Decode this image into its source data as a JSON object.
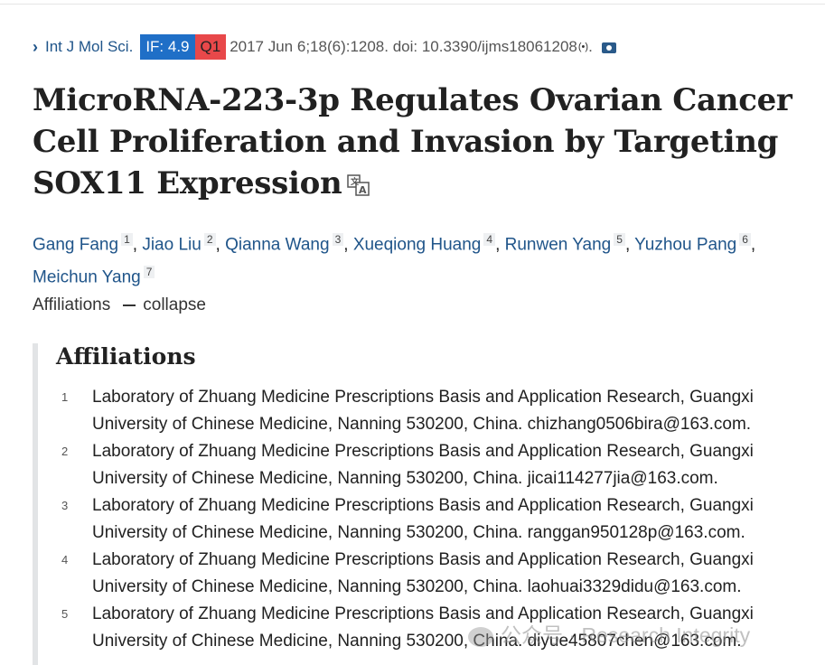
{
  "citation": {
    "journal": "Int J Mol Sci.",
    "impact_factor": "IF: 4.9",
    "quartile": "Q1",
    "details": "2017 Jun 6;18(6):1208. doi: 10.3390/ijms18061208",
    "doi_icon": "(•)",
    "period": "."
  },
  "title": "MicroRNA-223-3p Regulates Ovarian Cancer Cell Proliferation and Invasion by Targeting SOX11 Expression",
  "authors": [
    {
      "name": "Gang Fang",
      "aff": "1"
    },
    {
      "name": "Jiao Liu",
      "aff": "2"
    },
    {
      "name": "Qianna Wang",
      "aff": "3"
    },
    {
      "name": "Xueqiong Huang",
      "aff": "4"
    },
    {
      "name": "Runwen Yang",
      "aff": "5"
    },
    {
      "name": "Yuzhou Pang",
      "aff": "6"
    },
    {
      "name": "Meichun Yang",
      "aff": "7"
    }
  ],
  "affiliations_toggle": {
    "label": "Affiliations",
    "action": "collapse"
  },
  "affiliations": {
    "heading": "Affiliations",
    "items": [
      {
        "num": "1",
        "text": "Laboratory of Zhuang Medicine Prescriptions Basis and Application Research, Guangxi University of Chinese Medicine, Nanning 530200, China. chizhang0506bira@163.com."
      },
      {
        "num": "2",
        "text": "Laboratory of Zhuang Medicine Prescriptions Basis and Application Research, Guangxi University of Chinese Medicine, Nanning 530200, China. jicai114277jia@163.com."
      },
      {
        "num": "3",
        "text": "Laboratory of Zhuang Medicine Prescriptions Basis and Application Research, Guangxi University of Chinese Medicine, Nanning 530200, China. ranggan950128p@163.com."
      },
      {
        "num": "4",
        "text": "Laboratory of Zhuang Medicine Prescriptions Basis and Application Research, Guangxi University of Chinese Medicine, Nanning 530200, China. laohuai3329didu@163.com."
      },
      {
        "num": "5",
        "text": "Laboratory of Zhuang Medicine Prescriptions Basis and Application Research, Guangxi University of Chinese Medicine, Nanning 530200, China. diyue45807chen@163.com."
      }
    ]
  },
  "watermark": "公众号 · Research Integrity",
  "colors": {
    "link": "#20558a",
    "if_badge": "#1f6fc7",
    "q1_badge": "#e8484a"
  }
}
